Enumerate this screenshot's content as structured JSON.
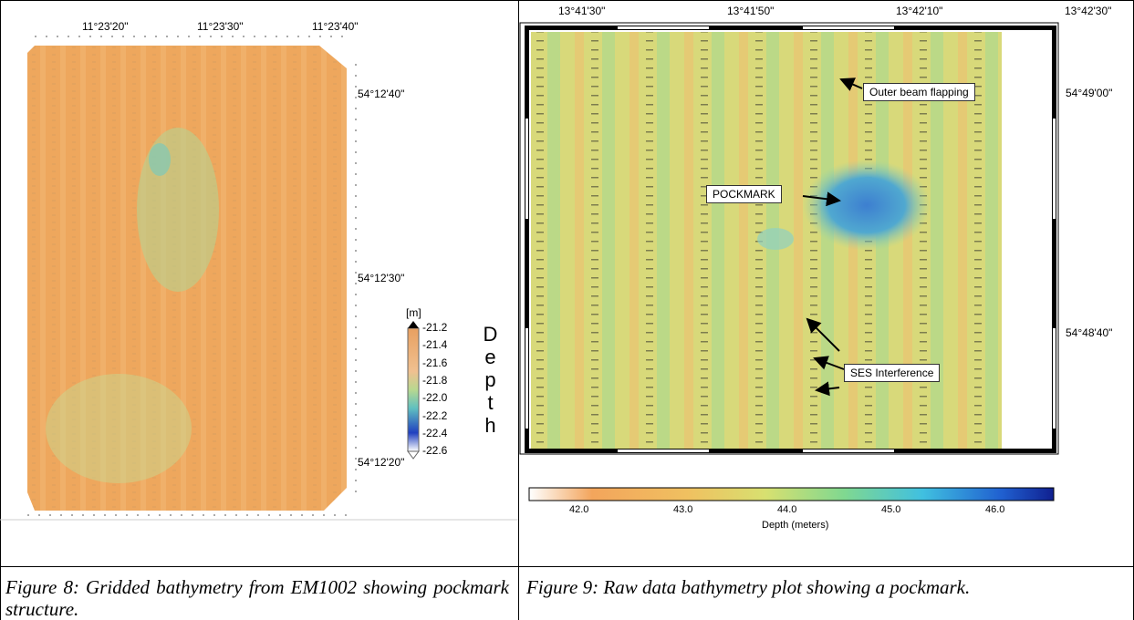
{
  "figures": [
    {
      "x_labels": [
        "11°23'20\"",
        "11°23'30\"",
        "11°23'40\""
      ],
      "y_labels": [
        "54°12'40\"",
        "54°12'30\"",
        "54°12'20\""
      ],
      "colorbar": {
        "unit": "[m]",
        "ticks": [
          "-21.2",
          "-21.4",
          "-21.6",
          "-21.8",
          "-22.0",
          "-22.2",
          "-22.4",
          "-22.6"
        ],
        "title": "Depth"
      },
      "caption": "Figure 8:  Gridded bathymetry from EM1002 showing pockmark structure."
    },
    {
      "x_labels": [
        "13°41'30\"",
        "13°41'50\"",
        "13°42'10\"",
        "13°42'30\""
      ],
      "y_labels": [
        "54°49'00\"",
        "54°48'40\""
      ],
      "annotations": [
        "Outer beam flapping",
        "POCKMARK",
        "SES Interference"
      ],
      "colorbar": {
        "ticks": [
          "42.0",
          "43.0",
          "44.0",
          "45.0",
          "46.0"
        ],
        "title": "Depth (meters)"
      },
      "caption": "Figure 9:  Raw data bathymetry plot showing a pockmark."
    }
  ]
}
